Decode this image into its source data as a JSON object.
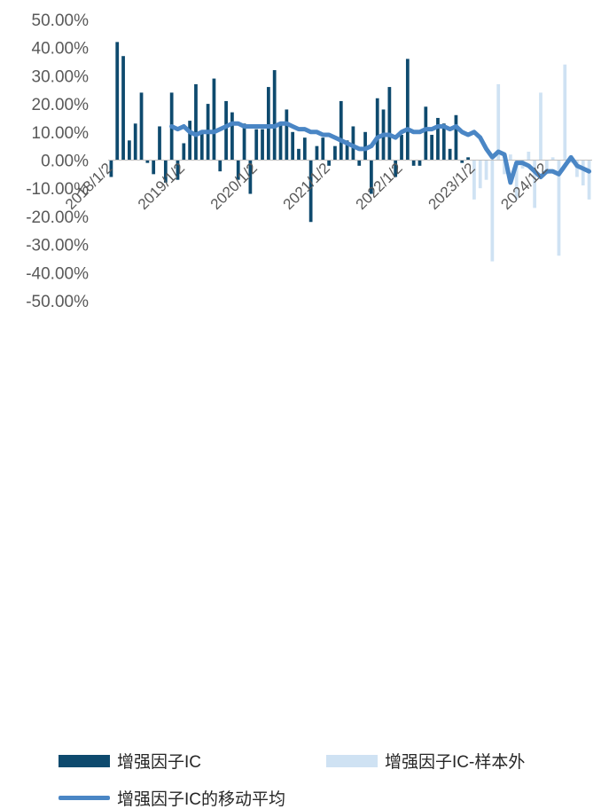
{
  "chart_data": {
    "type": "bar",
    "ylim": [
      -50,
      50
    ],
    "ytick_values": [
      50,
      40,
      30,
      20,
      10,
      0,
      -10,
      -20,
      -30,
      -40,
      -50
    ],
    "ytick_labels": [
      "50.00%",
      "40.00%",
      "30.00%",
      "20.00%",
      "10.00%",
      "0.00%",
      "-10.00%",
      "-20.00%",
      "-30.00%",
      "-40.00%",
      "-50.00%"
    ],
    "period": {
      "start": "2018/1",
      "end": "2024/11",
      "frequency": "monthly"
    },
    "xtick_labels": [
      "2018/1/2",
      "2019/1/2",
      "2020/1/2",
      "2021/1/2",
      "2022/1/2",
      "2023/1/2",
      "2024/1/2"
    ],
    "series": [
      {
        "name": "增强因子IC",
        "kind": "bar",
        "color": "#0e4a6e",
        "values": [
          -6,
          42,
          37,
          7,
          13,
          24,
          -1,
          -5,
          12,
          -8,
          24,
          -7,
          6,
          14,
          27,
          10,
          20,
          29,
          -4,
          21,
          17,
          -7,
          13,
          -12,
          11,
          11,
          26,
          32,
          13,
          18,
          10,
          4,
          8,
          -22,
          5,
          8,
          -2,
          5,
          21,
          7,
          12,
          -2,
          10,
          -12,
          22,
          18,
          26,
          -6,
          9,
          36,
          -2,
          -2,
          19,
          9,
          15,
          13,
          4,
          16,
          -1,
          1
        ]
      },
      {
        "name": "增强因子IC-样本外",
        "kind": "bar",
        "color": "#cfe2f3",
        "values": [
          -14,
          -10,
          -7,
          -36,
          27,
          -5,
          2,
          -14,
          -3,
          3,
          -17,
          24,
          -5,
          1,
          -34,
          34,
          -1,
          -6,
          -9,
          -14
        ]
      },
      {
        "name": "增强因子IC的移动平均",
        "kind": "line",
        "color": "#4a86c5",
        "values": [
          null,
          null,
          null,
          null,
          null,
          null,
          null,
          null,
          null,
          null,
          12,
          11,
          12,
          10,
          9,
          10,
          10,
          10,
          11,
          12,
          13,
          13,
          12,
          12,
          12,
          12,
          12,
          12,
          13,
          13,
          12,
          11,
          11,
          10,
          10,
          9,
          9,
          8,
          7,
          6,
          5,
          4,
          4,
          5,
          8,
          9,
          9,
          8,
          10,
          11,
          10,
          10,
          11,
          11,
          12,
          12,
          11,
          12,
          10,
          9,
          10,
          8,
          4,
          1,
          3,
          2,
          -8,
          -1,
          -1,
          -2,
          -4,
          -6,
          -4,
          -4,
          -5,
          -2,
          1,
          -2,
          -3,
          -4
        ]
      }
    ],
    "legend_position": "bottom",
    "grid": false
  }
}
